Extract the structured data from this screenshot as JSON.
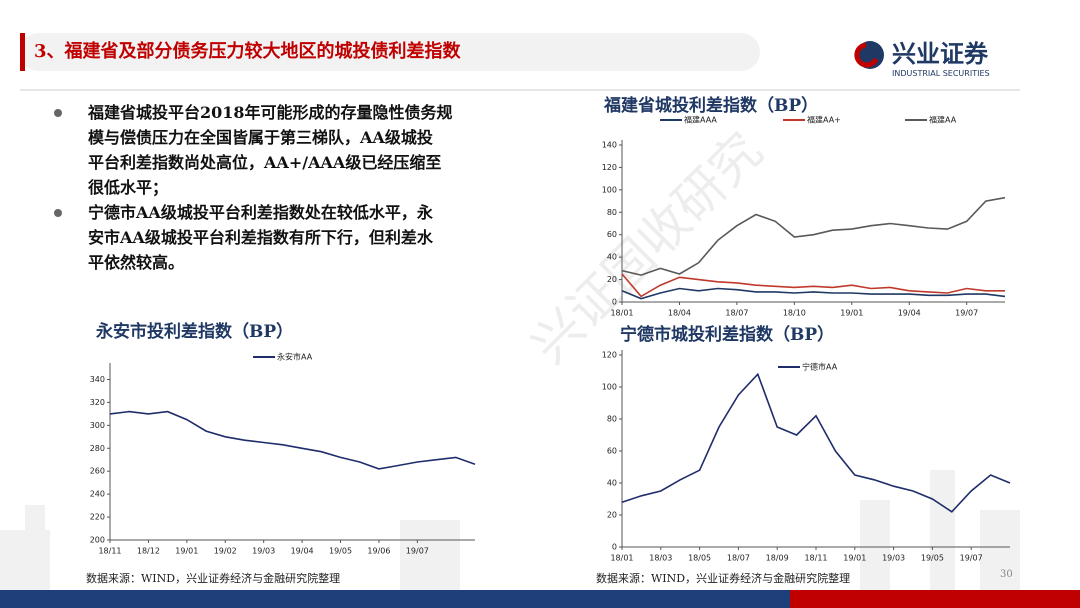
{
  "header": {
    "title": "3、福建省及部分债务压力较大地区的城投债利差指数",
    "logo": "兴业证券",
    "logo_sub": "INDUSTRIAL SECURITIES"
  },
  "bullets": [
    [
      "福建省城投平台2018年可能形成的存量隐性债务规",
      "模与偿债压力在全国皆属于第三梯队，AA级城投",
      "平台利差指数尚处高位，AA+/AAA级已经压缩至",
      "很低水平；"
    ],
    [
      "宁德市AA级城投平台利差指数处在较低水平，永",
      "安市AA级城投平台利差指数有所下行，但利差水",
      "平依然较高。"
    ]
  ],
  "watermark": "兴证固收研究",
  "chart_data": [
    {
      "type": "line",
      "title": "福建省城投利差指数（BP）",
      "categories": [
        "18/01",
        null,
        null,
        "18/04",
        null,
        null,
        "18/07",
        null,
        null,
        "18/10",
        null,
        null,
        "19/01",
        null,
        null,
        "19/04",
        null,
        null,
        "19/07",
        null,
        null
      ],
      "series": [
        {
          "name": "福建AAA",
          "color": "#1f3864",
          "values": [
            10,
            3,
            8,
            12,
            10,
            12,
            11,
            9,
            9,
            8,
            9,
            8,
            8,
            7,
            7,
            7,
            6,
            6,
            7,
            7,
            5
          ]
        },
        {
          "name": "福建AA+",
          "color": "#c0392b",
          "values": [
            25,
            5,
            15,
            22,
            20,
            18,
            17,
            15,
            14,
            13,
            14,
            13,
            15,
            12,
            13,
            10,
            9,
            8,
            12,
            10,
            10
          ]
        },
        {
          "name": "福建AA",
          "color": "#595959",
          "values": [
            28,
            24,
            30,
            25,
            35,
            55,
            68,
            78,
            72,
            58,
            60,
            64,
            65,
            68,
            70,
            68,
            66,
            65,
            72,
            90,
            93
          ]
        }
      ],
      "ylim": [
        0,
        140
      ],
      "yticks": [
        0,
        20,
        40,
        60,
        80,
        100,
        120,
        140
      ]
    },
    {
      "type": "line",
      "title": "永安市投利差指数（BP）",
      "categories": [
        "18/11",
        null,
        "18/12",
        null,
        "19/01",
        null,
        "19/02",
        null,
        "19/03",
        null,
        "19/04",
        null,
        "19/05",
        null,
        "19/06",
        null,
        "19/07",
        null,
        null,
        null
      ],
      "series": [
        {
          "name": "永安市AA",
          "color": "#1f2d6b",
          "values": [
            310,
            312,
            310,
            312,
            305,
            295,
            290,
            287,
            285,
            283,
            280,
            277,
            272,
            268,
            262,
            265,
            268,
            270,
            272,
            266
          ]
        }
      ],
      "ylim": [
        200,
        350
      ],
      "yticks": [
        200,
        220,
        240,
        260,
        280,
        300,
        320,
        340
      ]
    },
    {
      "type": "line",
      "title": "宁德市城投利差指数（BP）",
      "categories": [
        "18/01",
        null,
        "18/03",
        null,
        "18/05",
        null,
        "18/07",
        null,
        "18/09",
        null,
        "18/11",
        null,
        "19/01",
        null,
        "19/03",
        null,
        "19/05",
        null,
        "19/07",
        null,
        null
      ],
      "series": [
        {
          "name": "宁德市AA",
          "color": "#1f2d6b",
          "values": [
            28,
            32,
            35,
            42,
            48,
            75,
            95,
            108,
            75,
            70,
            82,
            60,
            45,
            42,
            38,
            35,
            30,
            22,
            35,
            45,
            40
          ]
        }
      ],
      "ylim": [
        0,
        120
      ],
      "yticks": [
        0,
        20,
        40,
        60,
        80,
        100,
        120
      ]
    }
  ],
  "sources": [
    "数据来源：WIND，兴业证券经济与金融研究院整理",
    "数据来源：WIND，兴业证券经济与金融研究院整理"
  ],
  "page_number": "30"
}
